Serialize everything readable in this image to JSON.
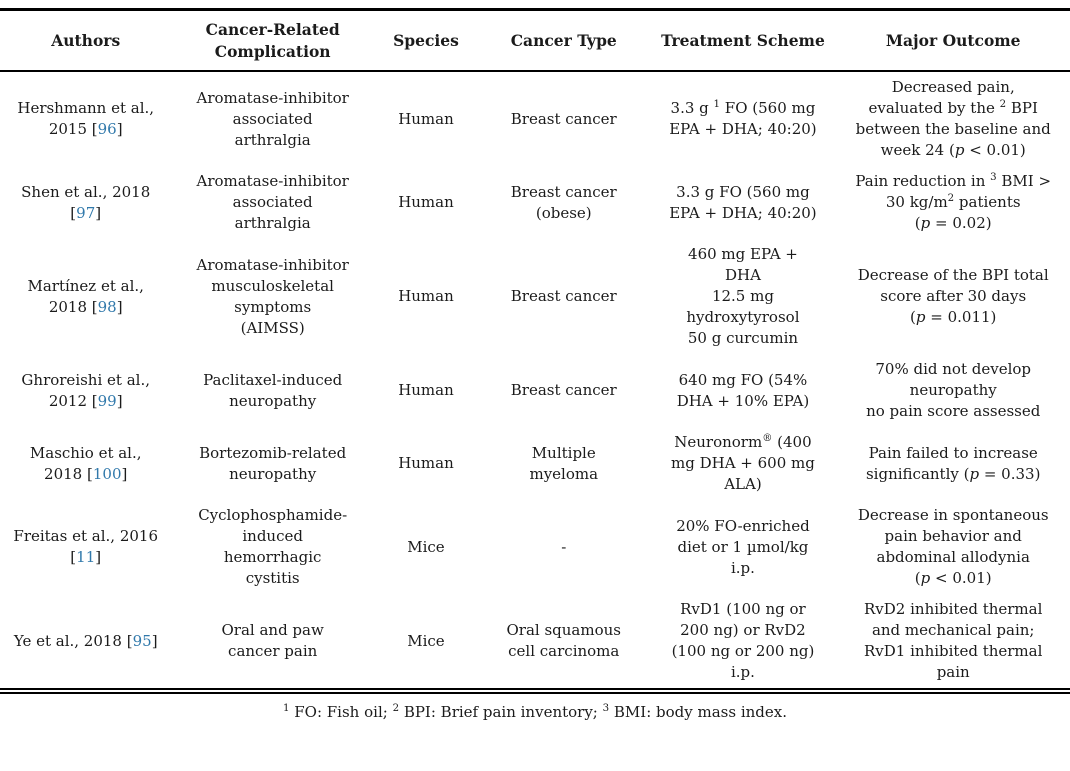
{
  "page": {
    "background": "#ffffff",
    "text_color": "#1b1b1b",
    "citation_link_color": "#3179ab",
    "rule_color": "#000000"
  },
  "table": {
    "fields": [
      "authors",
      "complication",
      "species",
      "cancer_type",
      "treatment",
      "outcome"
    ],
    "headers": {
      "authors": "Authors",
      "complication": "Cancer-Related\nComplication",
      "species": "Species",
      "cancer_type": "Cancer Type",
      "treatment": "Treatment Scheme",
      "outcome": "Major Outcome"
    },
    "rows": [
      {
        "authors": "Hershmann et al.,\n2015 [[96]]",
        "complication": "Aromatase-inhibitor\nassociated\narthralgia",
        "species": "Human",
        "cancer_type": "Breast cancer",
        "treatment": "3.3 g ^1^ FO (560 mg\nEPA + DHA; 40:20)",
        "outcome": "Decreased pain,\nevaluated by the ^2^ BPI\nbetween the baseline and\nweek 24 (*p* < 0.01)"
      },
      {
        "authors": "Shen et al., 2018\n[[97]]",
        "complication": "Aromatase-inhibitor\nassociated\narthralgia",
        "species": "Human",
        "cancer_type": "Breast cancer\n(obese)",
        "treatment": "3.3 g FO (560 mg\nEPA + DHA; 40:20)",
        "outcome": "Pain reduction in ^3^ BMI >\n30 kg/m^2^ patients\n(*p* = 0.02)"
      },
      {
        "authors": "Martínez et al.,\n2018 [[98]]",
        "complication": "Aromatase-inhibitor\nmusculoskeletal\nsymptoms\n(AIMSS)",
        "species": "Human",
        "cancer_type": "Breast cancer",
        "treatment": "460 mg EPA +\nDHA\n12.5 mg\nhydroxytyrosol\n50 g curcumin",
        "outcome": "Decrease of the BPI total\nscore after 30 days\n(*p* = 0.011)"
      },
      {
        "authors": "Ghroreishi et al.,\n2012 [[99]]",
        "complication": "Paclitaxel-induced\nneuropathy",
        "species": "Human",
        "cancer_type": "Breast cancer",
        "treatment": "640 mg FO (54%\nDHA + 10% EPA)",
        "outcome": "70% did not develop\nneuropathy\nno pain score assessed"
      },
      {
        "authors": "Maschio et al.,\n2018 [[100]]",
        "complication": "Bortezomib-related\nneuropathy",
        "species": "Human",
        "cancer_type": "Multiple\nmyeloma",
        "treatment": "Neuronorm^®^ (400\nmg DHA + 600 mg\nALA)",
        "outcome": "Pain failed to increase\nsignificantly (*p* = 0.33)"
      },
      {
        "authors": "Freitas et al., 2016\n[[11]]",
        "complication": "Cyclophosphamide-induced\nhemorrhagic\ncystitis",
        "species": "Mice",
        "cancer_type": "-",
        "treatment": "20% FO-enriched\ndiet or 1 µmol/kg\ni.p.",
        "outcome": "Decrease in spontaneous\npain behavior and\nabdominal allodynia\n(*p* < 0.01)"
      },
      {
        "authors": "Ye et al., 2018 [[95]]",
        "complication": "Oral and paw\ncancer pain",
        "species": "Mice",
        "cancer_type": "Oral squamous\ncell carcinoma",
        "treatment": "RvD1 (100 ng or\n200 ng) or RvD2\n(100 ng or 200 ng)\ni.p.",
        "outcome": "RvD2 inhibited thermal\nand mechanical pain;\nRvD1 inhibited thermal\npain"
      }
    ],
    "footnote": "^1^ FO: Fish oil; ^2^ BPI: Brief pain inventory; ^3^ BMI: body mass index."
  }
}
